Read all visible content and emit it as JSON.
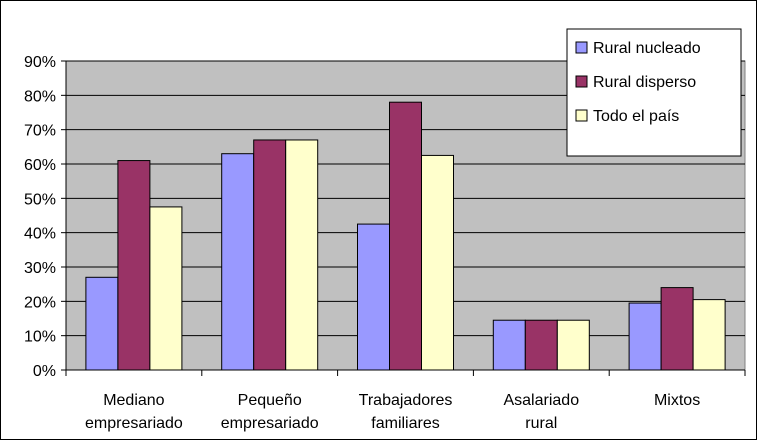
{
  "chart_data": {
    "type": "bar",
    "categories": [
      [
        "Mediano",
        "empresariado"
      ],
      [
        "Pequeño",
        "empresariado"
      ],
      [
        "Trabajadores",
        "familiares"
      ],
      [
        "Asalariado",
        "rural"
      ],
      [
        "Mixtos"
      ]
    ],
    "series": [
      {
        "name": "Rural nucleado",
        "color": "#9999ff",
        "values": [
          0.27,
          0.63,
          0.425,
          0.145,
          0.195
        ]
      },
      {
        "name": "Rural disperso",
        "color": "#993366",
        "values": [
          0.61,
          0.67,
          0.78,
          0.145,
          0.24
        ]
      },
      {
        "name": "Todo el país",
        "color": "#ffffcc",
        "values": [
          0.475,
          0.67,
          0.625,
          0.145,
          0.205
        ]
      }
    ],
    "ylim": [
      0,
      0.9
    ],
    "yticks": [
      "0%",
      "10%",
      "20%",
      "30%",
      "40%",
      "50%",
      "60%",
      "70%",
      "80%",
      "90%"
    ],
    "grid": true,
    "plot_background": "#c0c0c0",
    "legend_position": "top-right"
  }
}
